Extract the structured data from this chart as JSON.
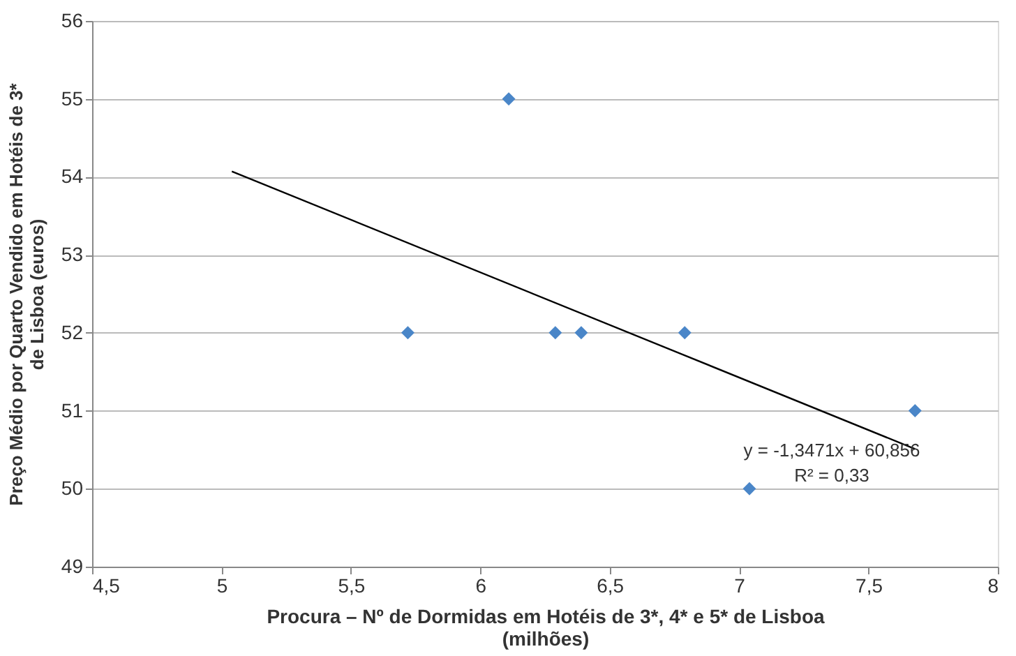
{
  "chart_data": {
    "type": "scatter",
    "xlabel": "Procura – Nº de Dormidas em Hotéis de 3*, 4* e 5* de Lisboa\n(milhões)",
    "ylabel": "Preço Médio por Quarto Vendido em Hotéis de 3*\nde Lisboa (euros)",
    "series": [
      {
        "color": "#4a86c8",
        "x": [
          5.72,
          6.11,
          6.29,
          6.39,
          6.79,
          7.04,
          7.68
        ],
        "values": [
          52,
          55,
          52,
          52,
          52,
          50,
          51
        ]
      },
      {
        "type": "line",
        "marker": "none",
        "color": "#000000",
        "x": [
          5.04,
          7.68
        ],
        "values": [
          54.07,
          50.51
        ]
      }
    ],
    "annotations": [
      "y = -1,3471x + 60,856",
      "R² = 0,33"
    ],
    "xlim": [
      4.5,
      8
    ],
    "ylim": [
      49,
      56
    ],
    "xticks": [
      {
        "value": 4.5,
        "label": "4,5"
      },
      5,
      {
        "value": 5.5,
        "label": "5,5"
      },
      6,
      {
        "value": 6.5,
        "label": "6,5"
      },
      7,
      {
        "value": 7.5,
        "label": "7,5"
      },
      8
    ],
    "yticks": [
      49,
      50,
      51,
      52,
      53,
      54,
      55,
      56
    ],
    "grid": "y",
    "marker": "diamond"
  }
}
